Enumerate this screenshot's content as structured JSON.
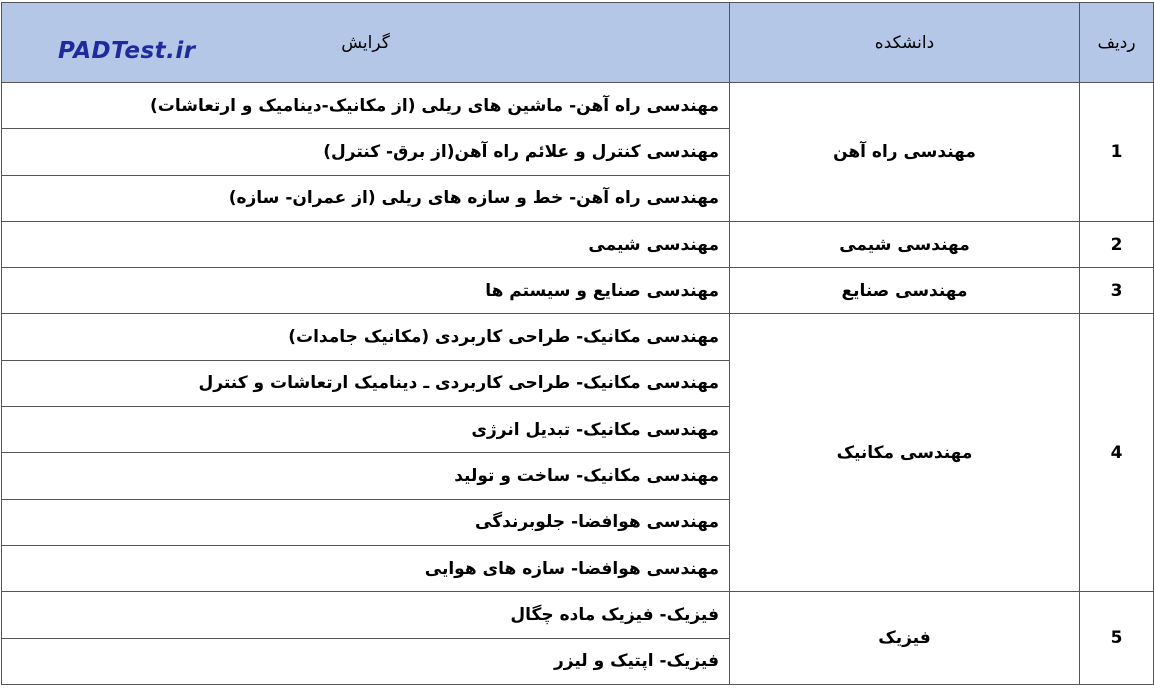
{
  "header": {
    "row_no": "ردیف",
    "faculty": "دانشکده",
    "major": "گرایش"
  },
  "watermark": "PADTest.ir",
  "header_color": "#b4c7e7",
  "rows": [
    {
      "no": "1",
      "faculty": "مهندسی راه آهن",
      "majors": [
        "مهندسی راه آهن- ماشین های ریلی (از مکانیک-دینامیک و ارتعاشات)",
        "مهندسی کنترل و علائم  راه آهن(از برق- کنترل)",
        "مهندسی راه آهن- خط و سازه های ریلی (از عمران- سازه)"
      ]
    },
    {
      "no": "2",
      "faculty": "مهندسی شیمی",
      "majors": [
        "مهندسی شیمی"
      ]
    },
    {
      "no": "3",
      "faculty": "مهندسی صنایع",
      "majors": [
        "مهندسی صنایع و سیستم ها"
      ]
    },
    {
      "no": "4",
      "faculty": "مهندسی مکانیک",
      "majors": [
        "مهندسی مکانیک- طراحی کاربردی (مکانیک جامدات)",
        "مهندسی مکانیک- طراحی کاربردی ـ دینامیک ارتعاشات و کنترل",
        "مهندسی مکانیک- تبدیل انرژی",
        "مهندسی مکانیک- ساخت و تولید",
        "مهندسی هوافضا- جلوبرندگی",
        "مهندسی هوافضا- سازه های هوایی"
      ]
    },
    {
      "no": "5",
      "faculty": "فیزیک",
      "majors": [
        "فیزیک- فیزیک ماده چگال",
        "فیزیک- اپتیک و لیزر"
      ]
    }
  ]
}
